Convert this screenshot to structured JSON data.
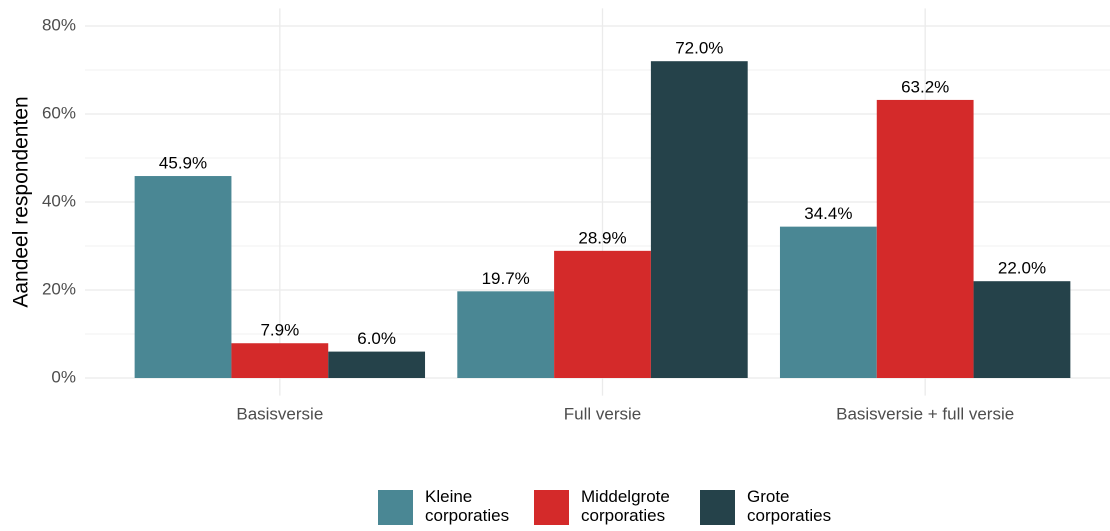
{
  "chart_data": {
    "type": "bar",
    "y_label": "Aandeel respondenten",
    "categories": [
      "Basisversie",
      "Full versie",
      "Basisversie + full versie"
    ],
    "series": [
      {
        "name": "Kleine corporaties",
        "color": "#4a8794",
        "values": [
          45.9,
          19.7,
          34.4
        ],
        "value_labels": [
          "45.9%",
          "19.7%",
          "34.4%"
        ]
      },
      {
        "name": "Middelgrote corporaties",
        "color": "#d42a2a",
        "values": [
          7.9,
          28.9,
          63.2
        ],
        "value_labels": [
          "7.9%",
          "28.9%",
          "63.2%"
        ]
      },
      {
        "name": "Grote corporaties",
        "color": "#25424a",
        "values": [
          6.0,
          72.0,
          22.0
        ],
        "value_labels": [
          "6.0%",
          "72.0%",
          "22.0%"
        ]
      }
    ],
    "ylim": [
      -4,
      84
    ],
    "yticks": [
      {
        "value": 0,
        "label": "0%"
      },
      {
        "value": 20,
        "label": "20%"
      },
      {
        "value": 40,
        "label": "40%"
      },
      {
        "value": 60,
        "label": "60%"
      },
      {
        "value": 80,
        "label": "80%"
      }
    ],
    "grid": true,
    "legend": "bottom"
  }
}
